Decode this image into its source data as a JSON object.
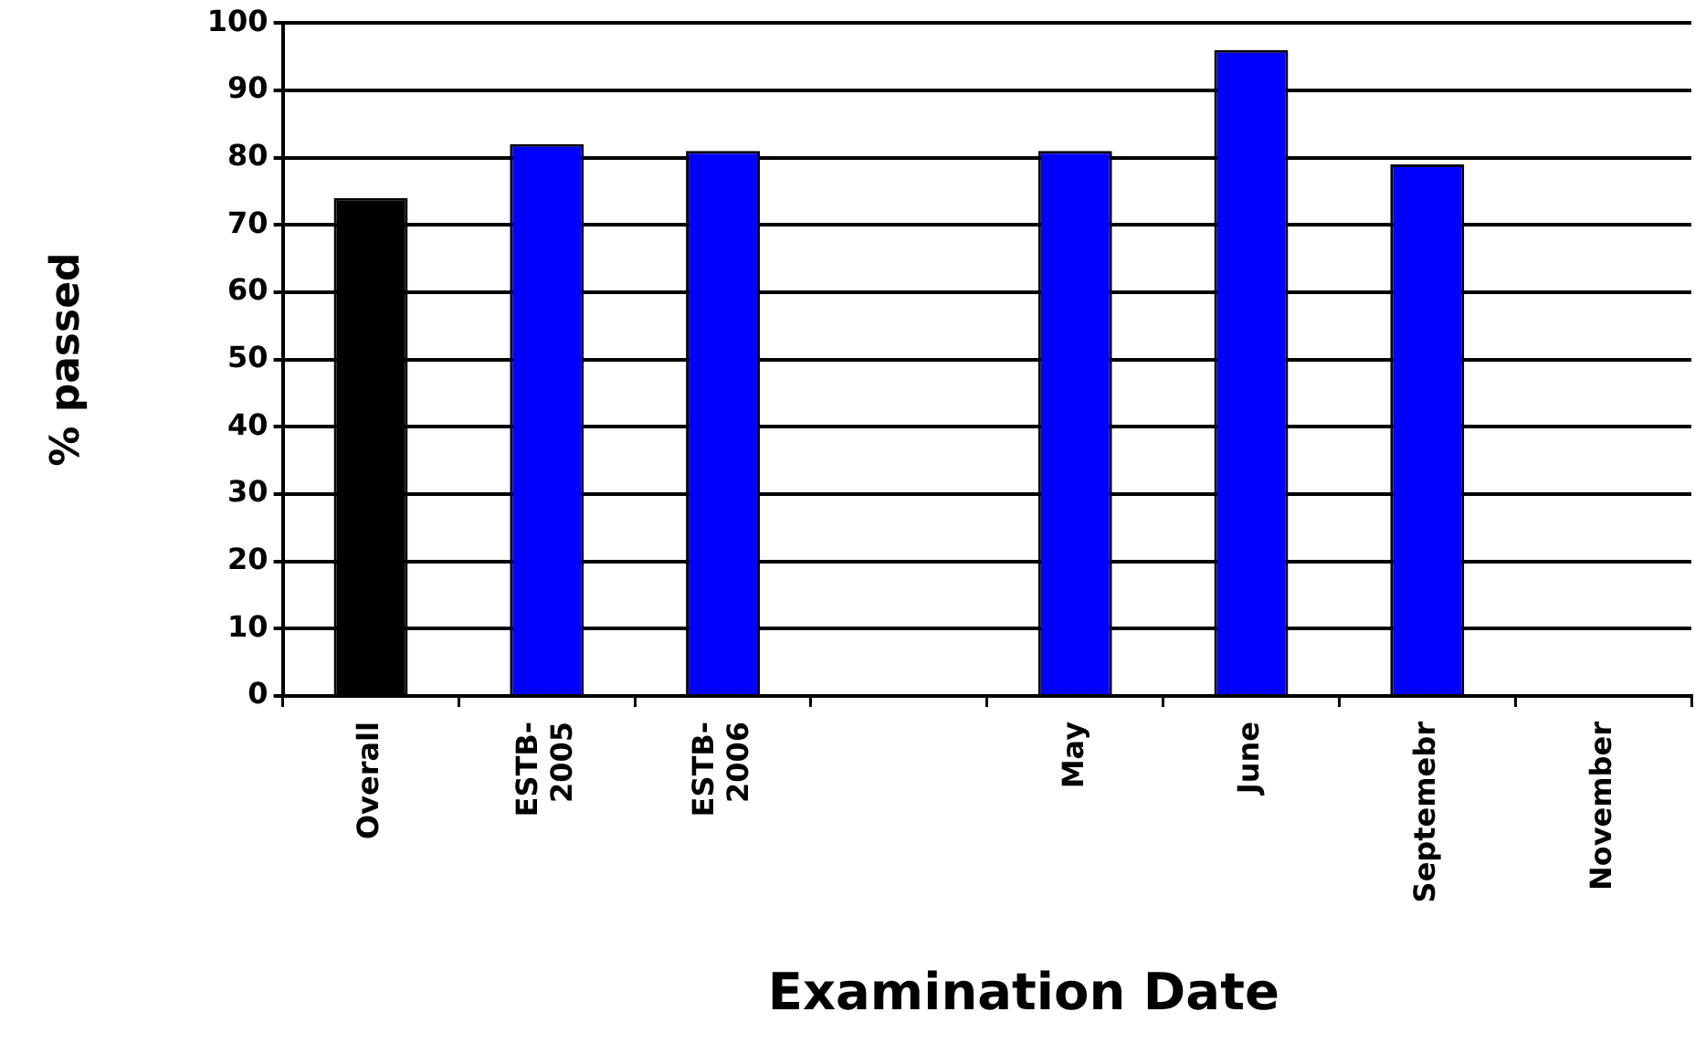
{
  "chart_data": {
    "type": "bar",
    "xlabel": "Examination Date",
    "ylabel": "% passed",
    "categories": [
      "Overall",
      "ESTB-2005",
      "ESTB-2006",
      null,
      "May",
      "June",
      "Septemebr",
      "November"
    ],
    "values": [
      74,
      82,
      81,
      null,
      81,
      96,
      79,
      null
    ],
    "colors": [
      "#000000",
      "#0000ff",
      "#0000ff",
      "#0000ff",
      "#0000ff",
      "#0000ff",
      "#0000ff",
      "#0000ff"
    ],
    "ylim": [
      0,
      100
    ],
    "yticks": [
      0,
      10,
      20,
      30,
      40,
      50,
      60,
      70,
      80,
      90,
      100
    ],
    "grid": "y",
    "legend": false
  }
}
